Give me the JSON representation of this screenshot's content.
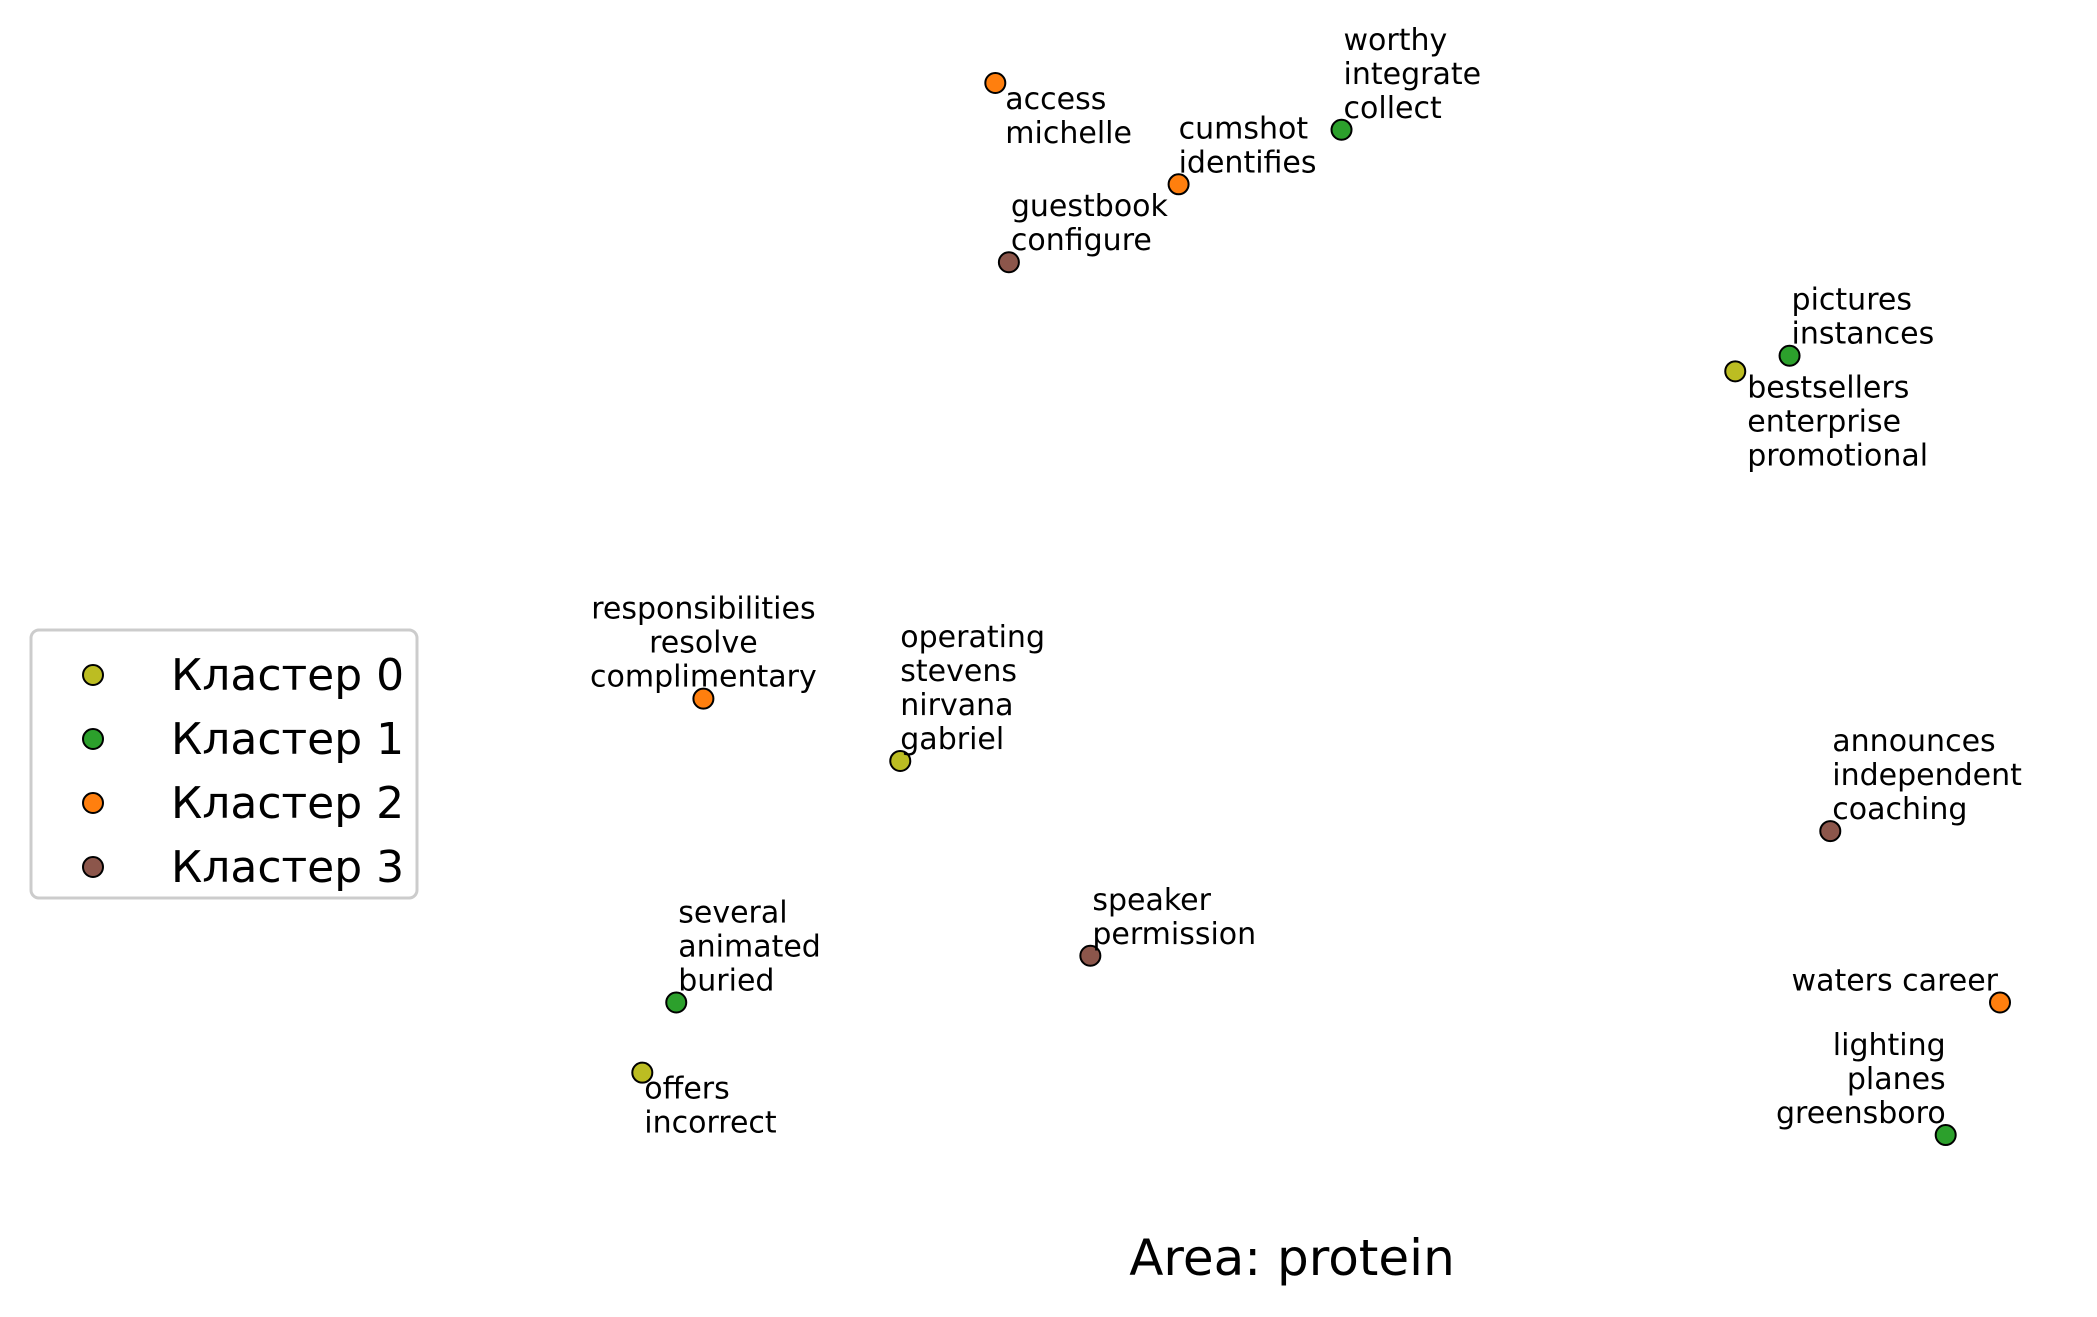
{
  "chart_data": {
    "type": "scatter",
    "title": "Area: protein",
    "xlabel": "",
    "ylabel": "",
    "grid": false,
    "axes_visible": false,
    "legend": {
      "placement": "center-left",
      "entries": [
        {
          "label": "Кластер 0",
          "color": "#bcbd22"
        },
        {
          "label": "Кластер 1",
          "color": "#2ca02c"
        },
        {
          "label": "Кластер 2",
          "color": "#ff7f0e"
        },
        {
          "label": "Кластер 3",
          "color": "#8c564b"
        }
      ]
    },
    "series": [
      {
        "cluster": 0,
        "color": "#bcbd22",
        "points": [
          {
            "x": 8.45,
            "y": 6.9,
            "label": "bestsellers\nenterprise\npromotional"
          },
          {
            "x": 2.3,
            "y": 4.4,
            "label": "operating\nstevens\nnirvana\ngabriel"
          },
          {
            "x": 0.4,
            "y": 2.4,
            "label": "offers\nincorrect"
          }
        ]
      },
      {
        "cluster": 1,
        "color": "#2ca02c",
        "points": [
          {
            "x": 5.55,
            "y": 8.45,
            "label": "worthy\nintegrate\ncollect"
          },
          {
            "x": 8.85,
            "y": 7.0,
            "label": "pictures\ninstances"
          },
          {
            "x": 0.65,
            "y": 2.85,
            "label": "several\nanimated\nburied"
          },
          {
            "x": 10.0,
            "y": 2.0,
            "label": "lighting\nplanes\ngreensboro"
          }
        ]
      },
      {
        "cluster": 2,
        "color": "#ff7f0e",
        "points": [
          {
            "x": 3.0,
            "y": 8.75,
            "label": "access\nmichelle"
          },
          {
            "x": 4.35,
            "y": 8.1,
            "label": "cumshot\nidentifies"
          },
          {
            "x": 0.85,
            "y": 4.8,
            "label": "responsibilities\nresolve\ncomplimentary"
          },
          {
            "x": 10.4,
            "y": 2.85,
            "label": "waters career"
          }
        ]
      },
      {
        "cluster": 3,
        "color": "#8c564b",
        "points": [
          {
            "x": 3.1,
            "y": 7.6,
            "label": "guestbook\nconfigure"
          },
          {
            "x": 9.15,
            "y": 3.95,
            "label": "announces\nindependent\ncoaching"
          },
          {
            "x": 3.7,
            "y": 3.15,
            "label": "speaker\npermission"
          }
        ]
      }
    ]
  }
}
